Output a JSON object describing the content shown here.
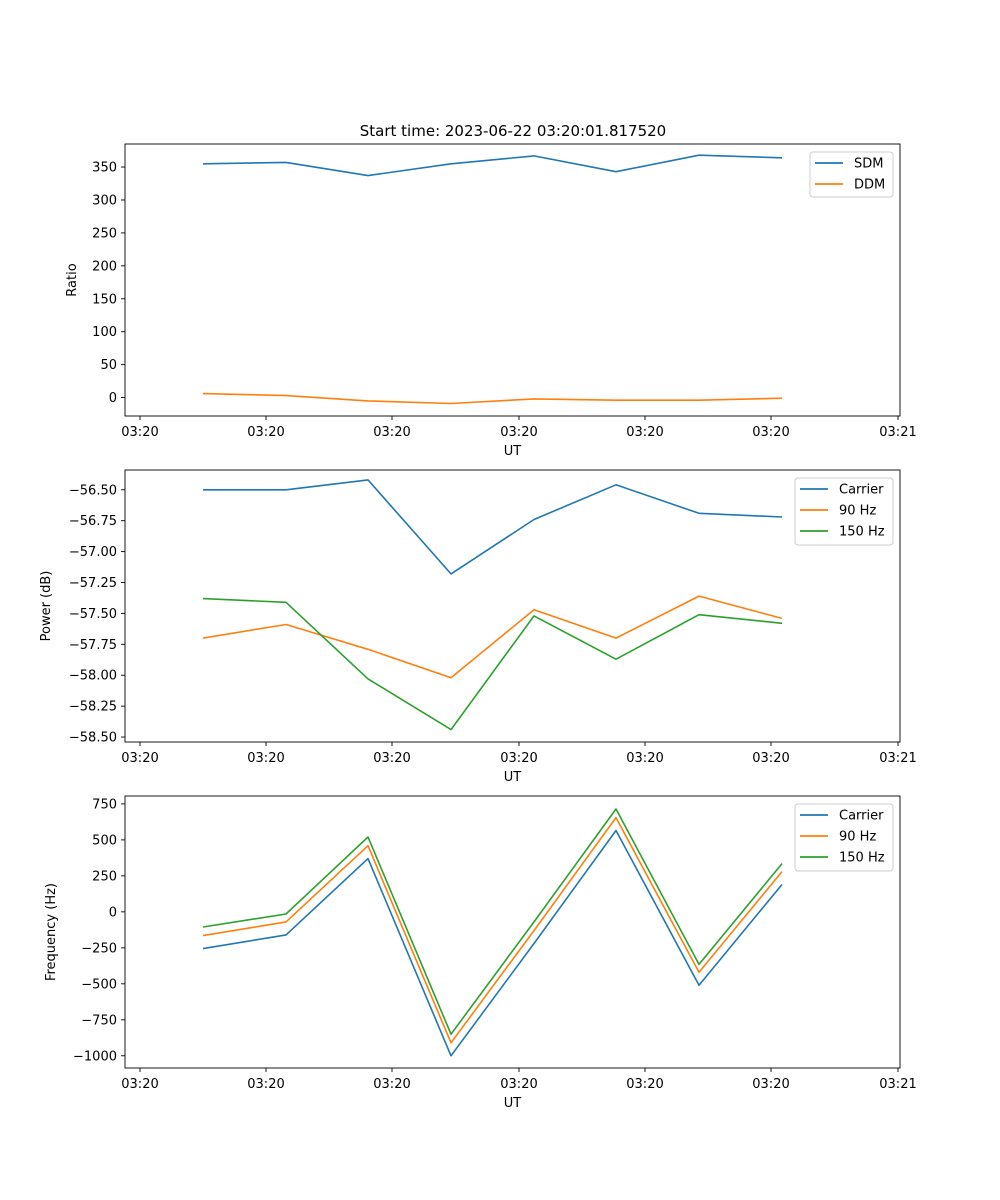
{
  "figure": {
    "title": "Start time: 2023-06-22 03:20:01.817520"
  },
  "chart_data": [
    {
      "type": "line",
      "title": "Start time: 2023-06-22 03:20:01.817520",
      "xlabel": "UT",
      "ylabel": "Ratio",
      "x_ticks": [
        "03:20",
        "03:20",
        "03:20",
        "03:20",
        "03:20",
        "03:20",
        "03:21"
      ],
      "y_ticks": [
        0,
        50,
        100,
        150,
        200,
        250,
        300,
        350
      ],
      "ylim": [
        -28,
        385
      ],
      "legend_position": "top-right",
      "grid": false,
      "series": [
        {
          "name": "SDM",
          "color": "#1f77b4",
          "values": [
            355,
            357,
            337,
            355,
            367,
            343,
            368,
            364
          ]
        },
        {
          "name": "DDM",
          "color": "#ff7f0e",
          "values": [
            6,
            3,
            -5,
            -9,
            -2,
            -4,
            -4,
            -1
          ]
        }
      ]
    },
    {
      "type": "line",
      "xlabel": "UT",
      "ylabel": "Power (dB)",
      "x_ticks": [
        "03:20",
        "03:20",
        "03:20",
        "03:20",
        "03:20",
        "03:20",
        "03:21"
      ],
      "y_ticks": [
        -56.5,
        -56.75,
        -57.0,
        -57.25,
        -57.5,
        -57.75,
        -58.0,
        -58.25,
        -58.5
      ],
      "y_tick_labels": [
        "−56.50",
        "−56.75",
        "−57.00",
        "−57.25",
        "−57.50",
        "−57.75",
        "−58.00",
        "−58.25",
        "−58.50"
      ],
      "ylim": [
        -58.54,
        -56.34
      ],
      "legend_position": "top-right",
      "grid": false,
      "series": [
        {
          "name": "Carrier",
          "color": "#1f77b4",
          "values": [
            -56.5,
            -56.5,
            -56.42,
            -57.18,
            -56.74,
            -56.46,
            -56.69,
            -56.72
          ]
        },
        {
          "name": "90 Hz",
          "color": "#ff7f0e",
          "values": [
            -57.7,
            -57.59,
            -57.79,
            -58.02,
            -57.47,
            -57.7,
            -57.36,
            -57.54
          ]
        },
        {
          "name": "150 Hz",
          "color": "#2ca02c",
          "values": [
            -57.38,
            -57.41,
            -58.03,
            -58.44,
            -57.52,
            -57.87,
            -57.51,
            -57.58
          ]
        }
      ]
    },
    {
      "type": "line",
      "xlabel": "UT",
      "ylabel": "Frequency (Hz)",
      "x_ticks": [
        "03:20",
        "03:20",
        "03:20",
        "03:20",
        "03:20",
        "03:20",
        "03:21"
      ],
      "y_ticks": [
        750,
        500,
        250,
        0,
        -250,
        -500,
        -750,
        -1000
      ],
      "y_tick_labels": [
        "750",
        "500",
        "250",
        "0",
        "−250",
        "−500",
        "−750",
        "−1000"
      ],
      "ylim": [
        -1085,
        805
      ],
      "legend_position": "top-right",
      "grid": false,
      "series": [
        {
          "name": "Carrier",
          "color": "#1f77b4",
          "values": [
            -255,
            -160,
            370,
            -1000,
            -220,
            565,
            -510,
            190
          ]
        },
        {
          "name": "90 Hz",
          "color": "#ff7f0e",
          "values": [
            -165,
            -70,
            460,
            -910,
            -130,
            655,
            -420,
            280
          ]
        },
        {
          "name": "150 Hz",
          "color": "#2ca02c",
          "values": [
            -105,
            -15,
            520,
            -850,
            -70,
            715,
            -365,
            335
          ]
        }
      ]
    }
  ]
}
